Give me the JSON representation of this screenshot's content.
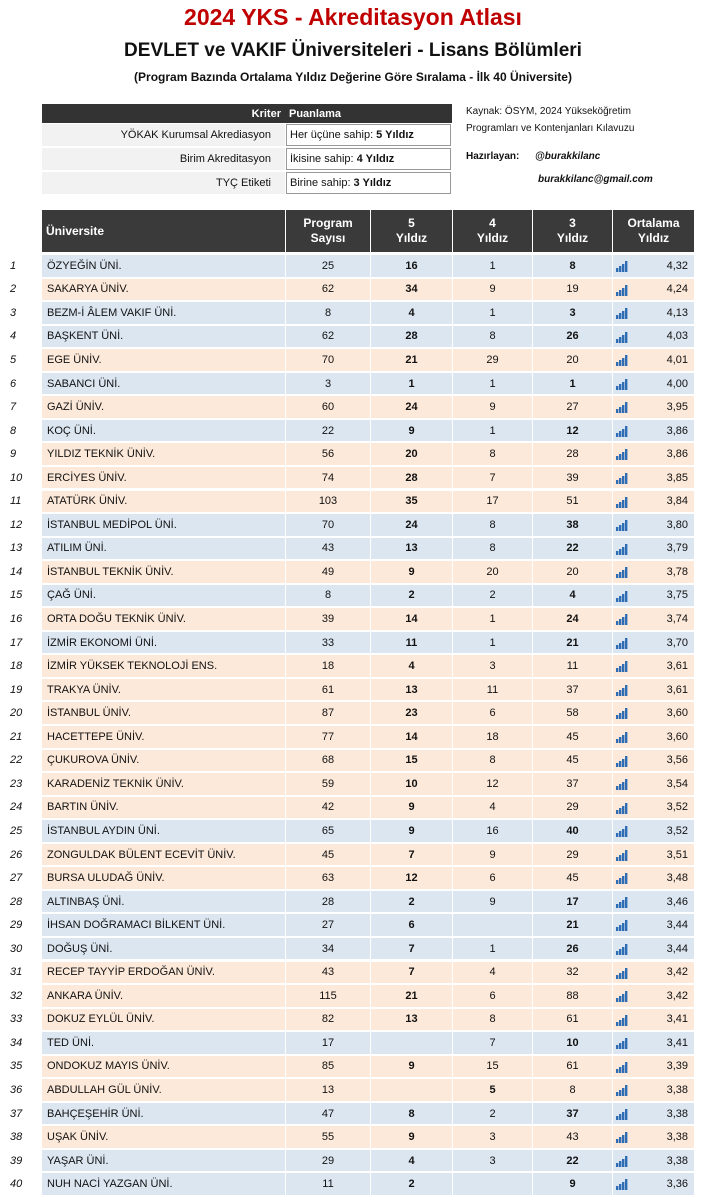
{
  "header": {
    "title": "2024 YKS - Akreditasyon Atlası",
    "subtitle": "DEVLET ve VAKIF Üniversiteleri - Lisans Bölümleri",
    "note": "(Program Bazında Ortalama Yıldız Değerine Göre Sıralama - İlk 40 Üniversite)"
  },
  "criteria": {
    "headers": [
      "Kriter",
      "Puanlama"
    ],
    "rows": [
      {
        "name": "YÖKAK Kurumsal Akrediasyon",
        "text": "Her üçüne sahip:",
        "stars": "5 Yıldız"
      },
      {
        "name": "Birim Akreditasyon",
        "text": "İkisine sahip:",
        "stars": "4 Yıldız"
      },
      {
        "name": "TYÇ Etiketi",
        "text": "Birine sahip:",
        "stars": "3 Yıldız"
      }
    ]
  },
  "info": {
    "source": [
      "Kaynak: ÖSYM, 2024 Yükseköğretim",
      "Programları ve Kontenjanları Kılavuzu"
    ],
    "author_label": "Hazırlayan:",
    "handle": "@burakkilanc",
    "email": "burakkilanc@gmail.com"
  },
  "table": {
    "headers": [
      "Üniversite",
      "Program\nSayısı",
      "5\nYıldız",
      "4\nYıldız",
      "3\nYıldız",
      "Ortalama\nYıldız"
    ],
    "rows": [
      {
        "rank": "1",
        "name": "ÖZYEĞİN ÜNİ.",
        "cells": [
          "25",
          "16",
          "1",
          "8"
        ],
        "avg": "4,32",
        "color": "#dce6f1",
        "bold": [
          1,
          3
        ]
      },
      {
        "rank": "2",
        "name": "SAKARYA ÜNİV.",
        "cells": [
          "62",
          "34",
          "9",
          "19"
        ],
        "avg": "4,24",
        "color": "#fde9d9",
        "bold": [
          1
        ]
      },
      {
        "rank": "3",
        "name": "BEZM-İ ÂLEM VAKIF ÜNİ.",
        "cells": [
          "8",
          "4",
          "1",
          "3"
        ],
        "avg": "4,13",
        "color": "#dce6f1",
        "bold": [
          1,
          3
        ]
      },
      {
        "rank": "4",
        "name": "BAŞKENT ÜNİ.",
        "cells": [
          "62",
          "28",
          "8",
          "26"
        ],
        "avg": "4,03",
        "color": "#dce6f1",
        "bold": [
          1,
          3
        ]
      },
      {
        "rank": "5",
        "name": "EGE ÜNİV.",
        "cells": [
          "70",
          "21",
          "29",
          "20"
        ],
        "avg": "4,01",
        "color": "#fde9d9",
        "bold": [
          1
        ]
      },
      {
        "rank": "6",
        "name": "SABANCI ÜNİ.",
        "cells": [
          "3",
          "1",
          "1",
          "1"
        ],
        "avg": "4,00",
        "color": "#dce6f1",
        "bold": [
          1,
          3
        ]
      },
      {
        "rank": "7",
        "name": "GAZİ ÜNİV.",
        "cells": [
          "60",
          "24",
          "9",
          "27"
        ],
        "avg": "3,95",
        "color": "#fde9d9",
        "bold": [
          1
        ]
      },
      {
        "rank": "8",
        "name": "KOÇ ÜNİ.",
        "cells": [
          "22",
          "9",
          "1",
          "12"
        ],
        "avg": "3,86",
        "color": "#dce6f1",
        "bold": [
          1,
          3
        ]
      },
      {
        "rank": "9",
        "name": "YILDIZ TEKNİK ÜNİV.",
        "cells": [
          "56",
          "20",
          "8",
          "28"
        ],
        "avg": "3,86",
        "color": "#fde9d9",
        "bold": [
          1
        ]
      },
      {
        "rank": "10",
        "name": "ERCİYES ÜNİV.",
        "cells": [
          "74",
          "28",
          "7",
          "39"
        ],
        "avg": "3,85",
        "color": "#fde9d9",
        "bold": [
          1
        ]
      },
      {
        "rank": "11",
        "name": "ATATÜRK ÜNİV.",
        "cells": [
          "103",
          "35",
          "17",
          "51"
        ],
        "avg": "3,84",
        "color": "#fde9d9",
        "bold": [
          1
        ]
      },
      {
        "rank": "12",
        "name": "İSTANBUL MEDİPOL ÜNİ.",
        "cells": [
          "70",
          "24",
          "8",
          "38"
        ],
        "avg": "3,80",
        "color": "#dce6f1",
        "bold": [
          1,
          3
        ]
      },
      {
        "rank": "13",
        "name": "ATILIM ÜNİ.",
        "cells": [
          "43",
          "13",
          "8",
          "22"
        ],
        "avg": "3,79",
        "color": "#dce6f1",
        "bold": [
          1,
          3
        ]
      },
      {
        "rank": "14",
        "name": "İSTANBUL TEKNİK ÜNİV.",
        "cells": [
          "49",
          "9",
          "20",
          "20"
        ],
        "avg": "3,78",
        "color": "#fde9d9",
        "bold": [
          1
        ]
      },
      {
        "rank": "15",
        "name": "ÇAĞ ÜNİ.",
        "cells": [
          "8",
          "2",
          "2",
          "4"
        ],
        "avg": "3,75",
        "color": "#dce6f1",
        "bold": [
          1,
          3
        ]
      },
      {
        "rank": "16",
        "name": "ORTA DOĞU TEKNİK ÜNİV.",
        "cells": [
          "39",
          "14",
          "1",
          "24"
        ],
        "avg": "3,74",
        "color": "#fde9d9",
        "bold": [
          1,
          3
        ]
      },
      {
        "rank": "17",
        "name": "İZMİR EKONOMİ ÜNİ.",
        "cells": [
          "33",
          "11",
          "1",
          "21"
        ],
        "avg": "3,70",
        "color": "#dce6f1",
        "bold": [
          1,
          3
        ]
      },
      {
        "rank": "18",
        "name": "İZMİR YÜKSEK TEKNOLOJİ ENS.",
        "cells": [
          "18",
          "4",
          "3",
          "11"
        ],
        "avg": "3,61",
        "color": "#fde9d9",
        "bold": [
          1
        ]
      },
      {
        "rank": "19",
        "name": "TRAKYA ÜNİV.",
        "cells": [
          "61",
          "13",
          "11",
          "37"
        ],
        "avg": "3,61",
        "color": "#fde9d9",
        "bold": [
          1
        ]
      },
      {
        "rank": "20",
        "name": "İSTANBUL ÜNİV.",
        "cells": [
          "87",
          "23",
          "6",
          "58"
        ],
        "avg": "3,60",
        "color": "#fde9d9",
        "bold": [
          1
        ]
      },
      {
        "rank": "21",
        "name": "HACETTEPE ÜNİV.",
        "cells": [
          "77",
          "14",
          "18",
          "45"
        ],
        "avg": "3,60",
        "color": "#fde9d9",
        "bold": [
          1
        ]
      },
      {
        "rank": "22",
        "name": "ÇUKUROVA ÜNİV.",
        "cells": [
          "68",
          "15",
          "8",
          "45"
        ],
        "avg": "3,56",
        "color": "#fde9d9",
        "bold": [
          1
        ]
      },
      {
        "rank": "23",
        "name": "KARADENİZ TEKNİK ÜNİV.",
        "cells": [
          "59",
          "10",
          "12",
          "37"
        ],
        "avg": "3,54",
        "color": "#fde9d9",
        "bold": [
          1
        ]
      },
      {
        "rank": "24",
        "name": "BARTIN ÜNİV.",
        "cells": [
          "42",
          "9",
          "4",
          "29"
        ],
        "avg": "3,52",
        "color": "#fde9d9",
        "bold": [
          1
        ]
      },
      {
        "rank": "25",
        "name": "İSTANBUL AYDIN ÜNİ.",
        "cells": [
          "65",
          "9",
          "16",
          "40"
        ],
        "avg": "3,52",
        "color": "#dce6f1",
        "bold": [
          1,
          3
        ]
      },
      {
        "rank": "26",
        "name": "ZONGULDAK BÜLENT ECEVİT ÜNİV.",
        "cells": [
          "45",
          "7",
          "9",
          "29"
        ],
        "avg": "3,51",
        "color": "#fde9d9",
        "bold": [
          1
        ]
      },
      {
        "rank": "27",
        "name": "BURSA ULUDAĞ ÜNİV.",
        "cells": [
          "63",
          "12",
          "6",
          "45"
        ],
        "avg": "3,48",
        "color": "#fde9d9",
        "bold": [
          1
        ]
      },
      {
        "rank": "28",
        "name": "ALTINBAŞ ÜNİ.",
        "cells": [
          "28",
          "2",
          "9",
          "17"
        ],
        "avg": "3,46",
        "color": "#dce6f1",
        "bold": [
          1,
          3
        ]
      },
      {
        "rank": "29",
        "name": "İHSAN DOĞRAMACI BİLKENT ÜNİ.",
        "cells": [
          "27",
          "6",
          null,
          "21"
        ],
        "avg": "3,44",
        "color": "#dce6f1",
        "bold": [
          1,
          3
        ]
      },
      {
        "rank": "30",
        "name": "DOĞUŞ ÜNİ.",
        "cells": [
          "34",
          "7",
          "1",
          "26"
        ],
        "avg": "3,44",
        "color": "#dce6f1",
        "bold": [
          1,
          3
        ]
      },
      {
        "rank": "31",
        "name": "RECEP TAYYİP ERDOĞAN ÜNİV.",
        "cells": [
          "43",
          "7",
          "4",
          "32"
        ],
        "avg": "3,42",
        "color": "#fde9d9",
        "bold": [
          1
        ]
      },
      {
        "rank": "32",
        "name": "ANKARA ÜNİV.",
        "cells": [
          "115",
          "21",
          "6",
          "88"
        ],
        "avg": "3,42",
        "color": "#fde9d9",
        "bold": [
          1
        ]
      },
      {
        "rank": "33",
        "name": "DOKUZ EYLÜL ÜNİV.",
        "cells": [
          "82",
          "13",
          "8",
          "61"
        ],
        "avg": "3,41",
        "color": "#fde9d9",
        "bold": [
          1
        ]
      },
      {
        "rank": "34",
        "name": "TED ÜNİ.",
        "cells": [
          "17",
          null,
          "7",
          "10"
        ],
        "avg": "3,41",
        "color": "#dce6f1",
        "bold": [
          1,
          3
        ]
      },
      {
        "rank": "35",
        "name": "ONDOKUZ MAYIS ÜNİV.",
        "cells": [
          "85",
          "9",
          "15",
          "61"
        ],
        "avg": "3,39",
        "color": "#fde9d9",
        "bold": [
          1
        ]
      },
      {
        "rank": "36",
        "name": "ABDULLAH GÜL ÜNİV.",
        "cells": [
          "13",
          null,
          "5",
          "8"
        ],
        "avg": "3,38",
        "color": "#fde9d9",
        "bold": [
          1,
          2
        ]
      },
      {
        "rank": "37",
        "name": "BAHÇEŞEHİR ÜNİ.",
        "cells": [
          "47",
          "8",
          "2",
          "37"
        ],
        "avg": "3,38",
        "color": "#dce6f1",
        "bold": [
          1,
          3
        ]
      },
      {
        "rank": "38",
        "name": "UŞAK ÜNİV.",
        "cells": [
          "55",
          "9",
          "3",
          "43"
        ],
        "avg": "3,38",
        "color": "#fde9d9",
        "bold": [
          1
        ]
      },
      {
        "rank": "39",
        "name": "YAŞAR ÜNİ.",
        "cells": [
          "29",
          "4",
          "3",
          "22"
        ],
        "avg": "3,38",
        "color": "#dce6f1",
        "bold": [
          1,
          3
        ]
      },
      {
        "rank": "40",
        "name": "NUH NACİ YAZGAN ÜNİ.",
        "cells": [
          "11",
          "2",
          null,
          "9"
        ],
        "avg": "3,36",
        "color": "#dce6f1",
        "bold": [
          1,
          3
        ]
      }
    ]
  }
}
